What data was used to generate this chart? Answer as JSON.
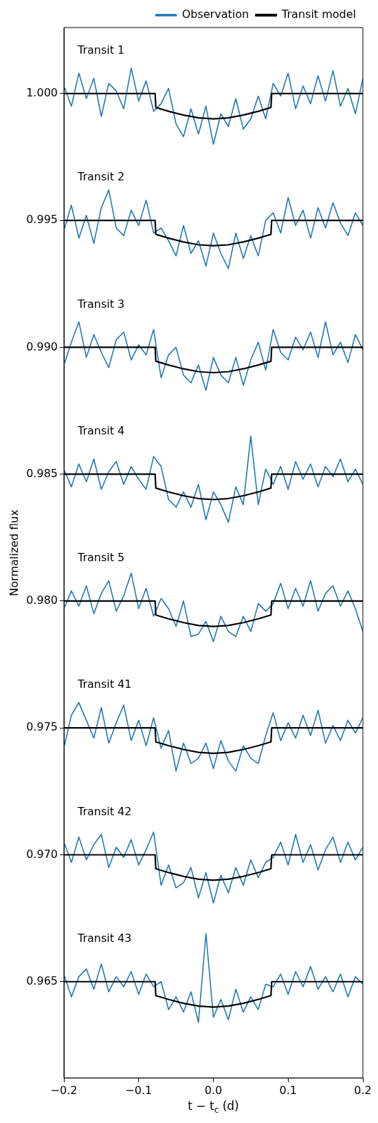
{
  "chart_data": {
    "type": "line",
    "xlabel": "t − t$_{c}$ (d)",
    "ylabel": "Normalized flux",
    "legend": "top right",
    "marker": "none",
    "line_style": "solid",
    "xlim": [
      -0.2,
      0.2
    ],
    "xticks": [
      {
        "value": -0.2,
        "label": "−0.2"
      },
      {
        "value": -0.1,
        "label": "−0.1"
      },
      {
        "value": 0,
        "label": "0.0"
      },
      0.1,
      0.2
    ],
    "ylim": [
      0.9612,
      1.0026
    ],
    "yticks": [
      0.965,
      {
        "value": 0.97,
        "label": "0.970"
      },
      0.975,
      {
        "value": 0.98,
        "label": "0.980"
      },
      0.985,
      {
        "value": 0.99,
        "label": "0.990"
      },
      0.995,
      {
        "value": 1,
        "label": "1.000"
      }
    ],
    "x": [
      -0.2,
      -0.19,
      -0.18,
      -0.17,
      -0.16,
      -0.15,
      -0.14,
      -0.13,
      -0.12,
      -0.11,
      -0.1,
      -0.09,
      -0.08,
      -0.07,
      -0.06,
      -0.05,
      -0.04,
      -0.03,
      -0.02,
      -0.01,
      0,
      0.01,
      0.02,
      0.03,
      0.04,
      0.05,
      0.06,
      0.07,
      0.08,
      0.09,
      0.1,
      0.11,
      0.12,
      0.13,
      0.14,
      0.15,
      0.16,
      0.17,
      0.18,
      0.19,
      0.2
    ],
    "series": [
      {
        "name": "Observation",
        "color": "#1f77b4",
        "values": [
          1.0003,
          0.9995,
          1.0008,
          0.9998,
          1.0006,
          0.9991,
          1.0004,
          1.0001,
          0.9994,
          1.001,
          0.9997,
          1.0005,
          0.9993,
          0.9996,
          1.0002,
          0.9988,
          0.9983,
          0.9994,
          0.9984,
          0.9995,
          0.998,
          0.9992,
          0.9987,
          0.9998,
          0.9986,
          0.999,
          0.9999,
          0.999,
          1.0004,
          0.9999,
          1.0008,
          0.9994,
          1.0003,
          0.9996,
          1.0007,
          0.9997,
          1.0009,
          0.9995,
          1.0002,
          0.9992,
          1.0006
        ]
      },
      {
        "color": "#1f77b4",
        "values": [
          0.9946,
          0.9956,
          0.9943,
          0.9952,
          0.9941,
          0.9955,
          0.9962,
          0.9947,
          0.9944,
          0.9954,
          0.9948,
          0.9958,
          0.9945,
          0.9947,
          0.9942,
          0.9936,
          0.9948,
          0.9937,
          0.9942,
          0.9932,
          0.9945,
          0.9937,
          0.9931,
          0.9945,
          0.9935,
          0.9944,
          0.9936,
          0.995,
          0.9953,
          0.9945,
          0.9959,
          0.9948,
          0.9954,
          0.9943,
          0.9955,
          0.9947,
          0.9957,
          0.9949,
          0.9944,
          0.9953,
          0.9948
        ]
      },
      {
        "color": "#1f77b4",
        "values": [
          0.9893,
          0.9902,
          0.991,
          0.9896,
          0.9905,
          0.9898,
          0.9892,
          0.9903,
          0.9906,
          0.9895,
          0.9901,
          0.9897,
          0.9907,
          0.9888,
          0.9897,
          0.99,
          0.9889,
          0.9886,
          0.9893,
          0.9883,
          0.9896,
          0.9889,
          0.9886,
          0.9896,
          0.9885,
          0.9895,
          0.9902,
          0.9891,
          0.9907,
          0.9898,
          0.9895,
          0.9904,
          0.9899,
          0.9906,
          0.9896,
          0.991,
          0.9897,
          0.9902,
          0.9894,
          0.9905,
          0.9899
        ]
      },
      {
        "color": "#1f77b4",
        "values": [
          0.9852,
          0.9845,
          0.9854,
          0.9847,
          0.9856,
          0.9844,
          0.9851,
          0.9855,
          0.9846,
          0.9853,
          0.9848,
          0.9844,
          0.9857,
          0.9853,
          0.984,
          0.9837,
          0.9843,
          0.9837,
          0.9846,
          0.9832,
          0.9843,
          0.9838,
          0.9831,
          0.9845,
          0.9838,
          0.9865,
          0.9838,
          0.9852,
          0.9846,
          0.9853,
          0.9844,
          0.9855,
          0.9848,
          0.9854,
          0.9845,
          0.9853,
          0.9849,
          0.9856,
          0.9847,
          0.9852,
          0.9846
        ]
      },
      {
        "color": "#1f77b4",
        "values": [
          0.9797,
          0.9804,
          0.9798,
          0.9806,
          0.9795,
          0.9803,
          0.9808,
          0.9796,
          0.9802,
          0.9811,
          0.9797,
          0.9805,
          0.9794,
          0.9801,
          0.9797,
          0.979,
          0.98,
          0.9786,
          0.9787,
          0.9792,
          0.9784,
          0.9794,
          0.9788,
          0.9786,
          0.9794,
          0.9788,
          0.9799,
          0.9796,
          0.9799,
          0.9807,
          0.9797,
          0.9805,
          0.9798,
          0.9808,
          0.9796,
          0.9803,
          0.9806,
          0.9798,
          0.9804,
          0.9797,
          0.9788
        ]
      },
      {
        "color": "#1f77b4",
        "values": [
          0.9742,
          0.9755,
          0.976,
          0.9753,
          0.9746,
          0.9758,
          0.9744,
          0.9752,
          0.9759,
          0.9745,
          0.9753,
          0.9743,
          0.9754,
          0.9742,
          0.9749,
          0.9733,
          0.9744,
          0.9736,
          0.9738,
          0.9744,
          0.9734,
          0.9745,
          0.9737,
          0.9733,
          0.9743,
          0.9738,
          0.9736,
          0.9747,
          0.9756,
          0.9745,
          0.9752,
          0.9746,
          0.9755,
          0.9747,
          0.9757,
          0.9744,
          0.9751,
          0.9745,
          0.9753,
          0.9748,
          0.9754
        ]
      },
      {
        "color": "#1f77b4",
        "values": [
          0.9705,
          0.9697,
          0.9707,
          0.9698,
          0.9704,
          0.9708,
          0.9695,
          0.9703,
          0.9699,
          0.9706,
          0.9696,
          0.9702,
          0.9709,
          0.9688,
          0.9696,
          0.9687,
          0.9689,
          0.9695,
          0.9683,
          0.9693,
          0.9681,
          0.9692,
          0.9685,
          0.9695,
          0.9688,
          0.9698,
          0.9691,
          0.9697,
          0.9699,
          0.9705,
          0.9696,
          0.9708,
          0.9697,
          0.9704,
          0.9694,
          0.9702,
          0.9707,
          0.9697,
          0.9705,
          0.9698,
          0.9703
        ]
      },
      {
        "color": "#1f77b4",
        "values": [
          0.9653,
          0.9644,
          0.9652,
          0.9655,
          0.9647,
          0.9657,
          0.9646,
          0.9652,
          0.9648,
          0.9654,
          0.9645,
          0.9653,
          0.9648,
          0.965,
          0.9639,
          0.9644,
          0.9638,
          0.9646,
          0.9634,
          0.9669,
          0.9636,
          0.9643,
          0.9635,
          0.9647,
          0.9638,
          0.9644,
          0.9639,
          0.9649,
          0.9648,
          0.9653,
          0.9645,
          0.9654,
          0.9648,
          0.9656,
          0.9647,
          0.9652,
          0.9646,
          0.9653,
          0.9644,
          0.9652,
          0.9649
        ]
      },
      {
        "name": "Transit model",
        "color": "#000000",
        "x": [
          -0.2,
          -0.078,
          -0.077,
          -0.06,
          -0.04,
          -0.02,
          0,
          0.02,
          0.04,
          0.06,
          0.077,
          0.078,
          0.2
        ],
        "values": [
          1,
          1,
          0.99945,
          0.9993,
          0.99915,
          0.99904,
          0.999,
          0.99904,
          0.99915,
          0.9993,
          0.99945,
          1,
          1
        ]
      },
      {
        "color": "#000000",
        "x": [
          -0.2,
          -0.078,
          -0.077,
          -0.06,
          -0.04,
          -0.02,
          0,
          0.02,
          0.04,
          0.06,
          0.077,
          0.078,
          0.2
        ],
        "values": [
          0.995,
          0.995,
          0.99445,
          0.9943,
          0.99415,
          0.99404,
          0.994,
          0.99404,
          0.99415,
          0.9943,
          0.99445,
          0.995,
          0.995
        ]
      },
      {
        "color": "#000000",
        "x": [
          -0.2,
          -0.078,
          -0.077,
          -0.06,
          -0.04,
          -0.02,
          0,
          0.02,
          0.04,
          0.06,
          0.077,
          0.078,
          0.2
        ],
        "values": [
          0.99,
          0.99,
          0.98945,
          0.9893,
          0.98915,
          0.98904,
          0.989,
          0.98904,
          0.98915,
          0.9893,
          0.98945,
          0.99,
          0.99
        ]
      },
      {
        "color": "#000000",
        "x": [
          -0.2,
          -0.078,
          -0.077,
          -0.06,
          -0.04,
          -0.02,
          0,
          0.02,
          0.04,
          0.06,
          0.077,
          0.078,
          0.2
        ],
        "values": [
          0.985,
          0.985,
          0.98445,
          0.9843,
          0.98415,
          0.98404,
          0.984,
          0.98404,
          0.98415,
          0.9843,
          0.98445,
          0.985,
          0.985
        ]
      },
      {
        "color": "#000000",
        "x": [
          -0.2,
          -0.078,
          -0.077,
          -0.06,
          -0.04,
          -0.02,
          0,
          0.02,
          0.04,
          0.06,
          0.077,
          0.078,
          0.2
        ],
        "values": [
          0.98,
          0.98,
          0.97945,
          0.9793,
          0.97915,
          0.97904,
          0.979,
          0.97904,
          0.97915,
          0.9793,
          0.97945,
          0.98,
          0.98
        ]
      },
      {
        "color": "#000000",
        "x": [
          -0.2,
          -0.078,
          -0.077,
          -0.06,
          -0.04,
          -0.02,
          0,
          0.02,
          0.04,
          0.06,
          0.077,
          0.078,
          0.2
        ],
        "values": [
          0.975,
          0.975,
          0.97445,
          0.9743,
          0.97415,
          0.97404,
          0.974,
          0.97404,
          0.97415,
          0.9743,
          0.97445,
          0.975,
          0.975
        ]
      },
      {
        "color": "#000000",
        "x": [
          -0.2,
          -0.078,
          -0.077,
          -0.06,
          -0.04,
          -0.02,
          0,
          0.02,
          0.04,
          0.06,
          0.077,
          0.078,
          0.2
        ],
        "values": [
          0.97,
          0.97,
          0.96945,
          0.9693,
          0.96915,
          0.96904,
          0.969,
          0.96904,
          0.96915,
          0.9693,
          0.96945,
          0.97,
          0.97
        ]
      },
      {
        "color": "#000000",
        "x": [
          -0.2,
          -0.078,
          -0.077,
          -0.06,
          -0.04,
          -0.02,
          0,
          0.02,
          0.04,
          0.06,
          0.077,
          0.078,
          0.2
        ],
        "values": [
          0.965,
          0.965,
          0.96445,
          0.9643,
          0.96415,
          0.96404,
          0.964,
          0.96404,
          0.96415,
          0.9643,
          0.96445,
          0.965,
          0.965
        ]
      }
    ],
    "annotations": [
      "Transit 1",
      "Transit 2",
      "Transit 3",
      "Transit 4",
      "Transit 5",
      "Transit 41",
      "Transit 42",
      "Transit 43"
    ]
  }
}
